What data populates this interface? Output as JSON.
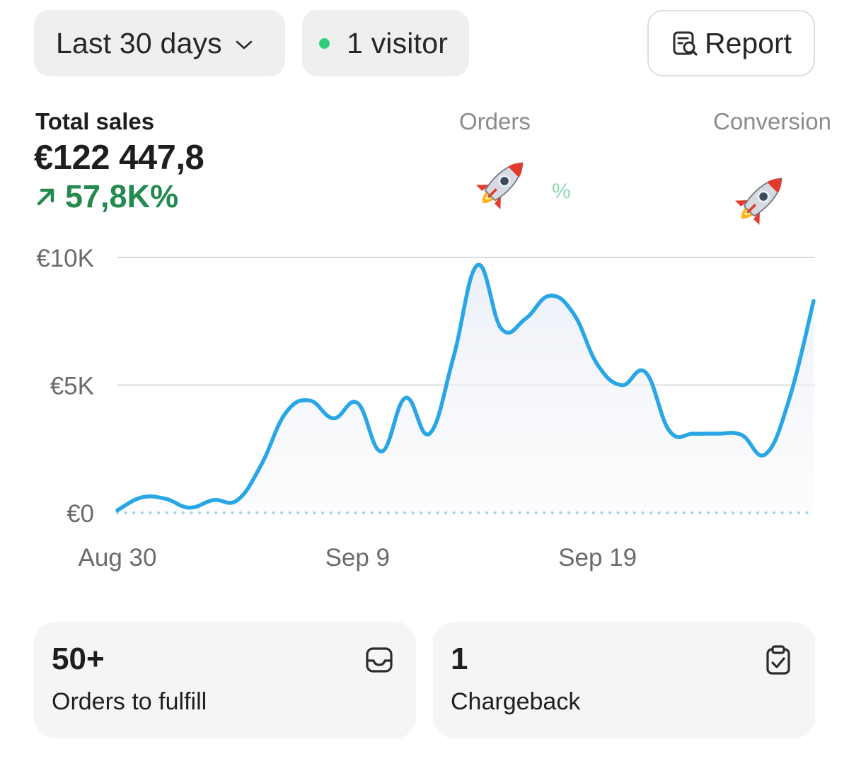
{
  "filters": {
    "range_label": "Last 30 days",
    "visitors_label": "1 visitor",
    "report_label": "Report"
  },
  "metrics": {
    "total_sales": {
      "label": "Total sales",
      "value": "€122 447,8",
      "change": "57,8K%"
    },
    "orders": {
      "label": "Orders",
      "value_icon": "rocket-emoji",
      "change": "%"
    },
    "conversion": {
      "label": "Conversion",
      "value_icon": "rocket-emoji"
    }
  },
  "colors": {
    "accent_line": "#29a6e6",
    "positive": "#248a4f",
    "live_dot": "#2fd07c"
  },
  "chart_data": {
    "type": "line",
    "x_tick_labels": [
      "Aug 30",
      "Sep 9",
      "Sep 19"
    ],
    "y_tick_labels": [
      "€10K",
      "€5K",
      "€0"
    ],
    "ylim": [
      0,
      10000
    ],
    "grid": true,
    "series": [
      {
        "style": "solid",
        "x": [
          "Aug 30",
          "Aug 31",
          "Sep 1",
          "Sep 2",
          "Sep 3",
          "Sep 4",
          "Sep 5",
          "Sep 6",
          "Sep 7",
          "Sep 8",
          "Sep 9",
          "Sep 10",
          "Sep 11",
          "Sep 12",
          "Sep 13",
          "Sep 14",
          "Sep 15",
          "Sep 16",
          "Sep 17",
          "Sep 18",
          "Sep 19",
          "Sep 20",
          "Sep 21",
          "Sep 22",
          "Sep 23",
          "Sep 24",
          "Sep 25",
          "Sep 26",
          "Sep 27",
          "Sep 28"
        ],
        "values": [
          100,
          600,
          550,
          200,
          500,
          500,
          1900,
          3900,
          4400,
          3700,
          4300,
          2400,
          4500,
          3100,
          6100,
          9700,
          7200,
          7600,
          8500,
          7800,
          5800,
          5000,
          5500,
          3200,
          3100,
          3100,
          3050,
          2300,
          4500,
          8300
        ]
      },
      {
        "style": "dotted",
        "x": [
          "Aug 30",
          "Sep 28"
        ],
        "values": [
          0,
          0
        ]
      }
    ]
  },
  "cards": [
    {
      "value": "50+",
      "label": "Orders to fulfill",
      "icon": "inbox-icon"
    },
    {
      "value": "1",
      "label": "Chargeback",
      "icon": "clipboard-check-icon"
    }
  ]
}
